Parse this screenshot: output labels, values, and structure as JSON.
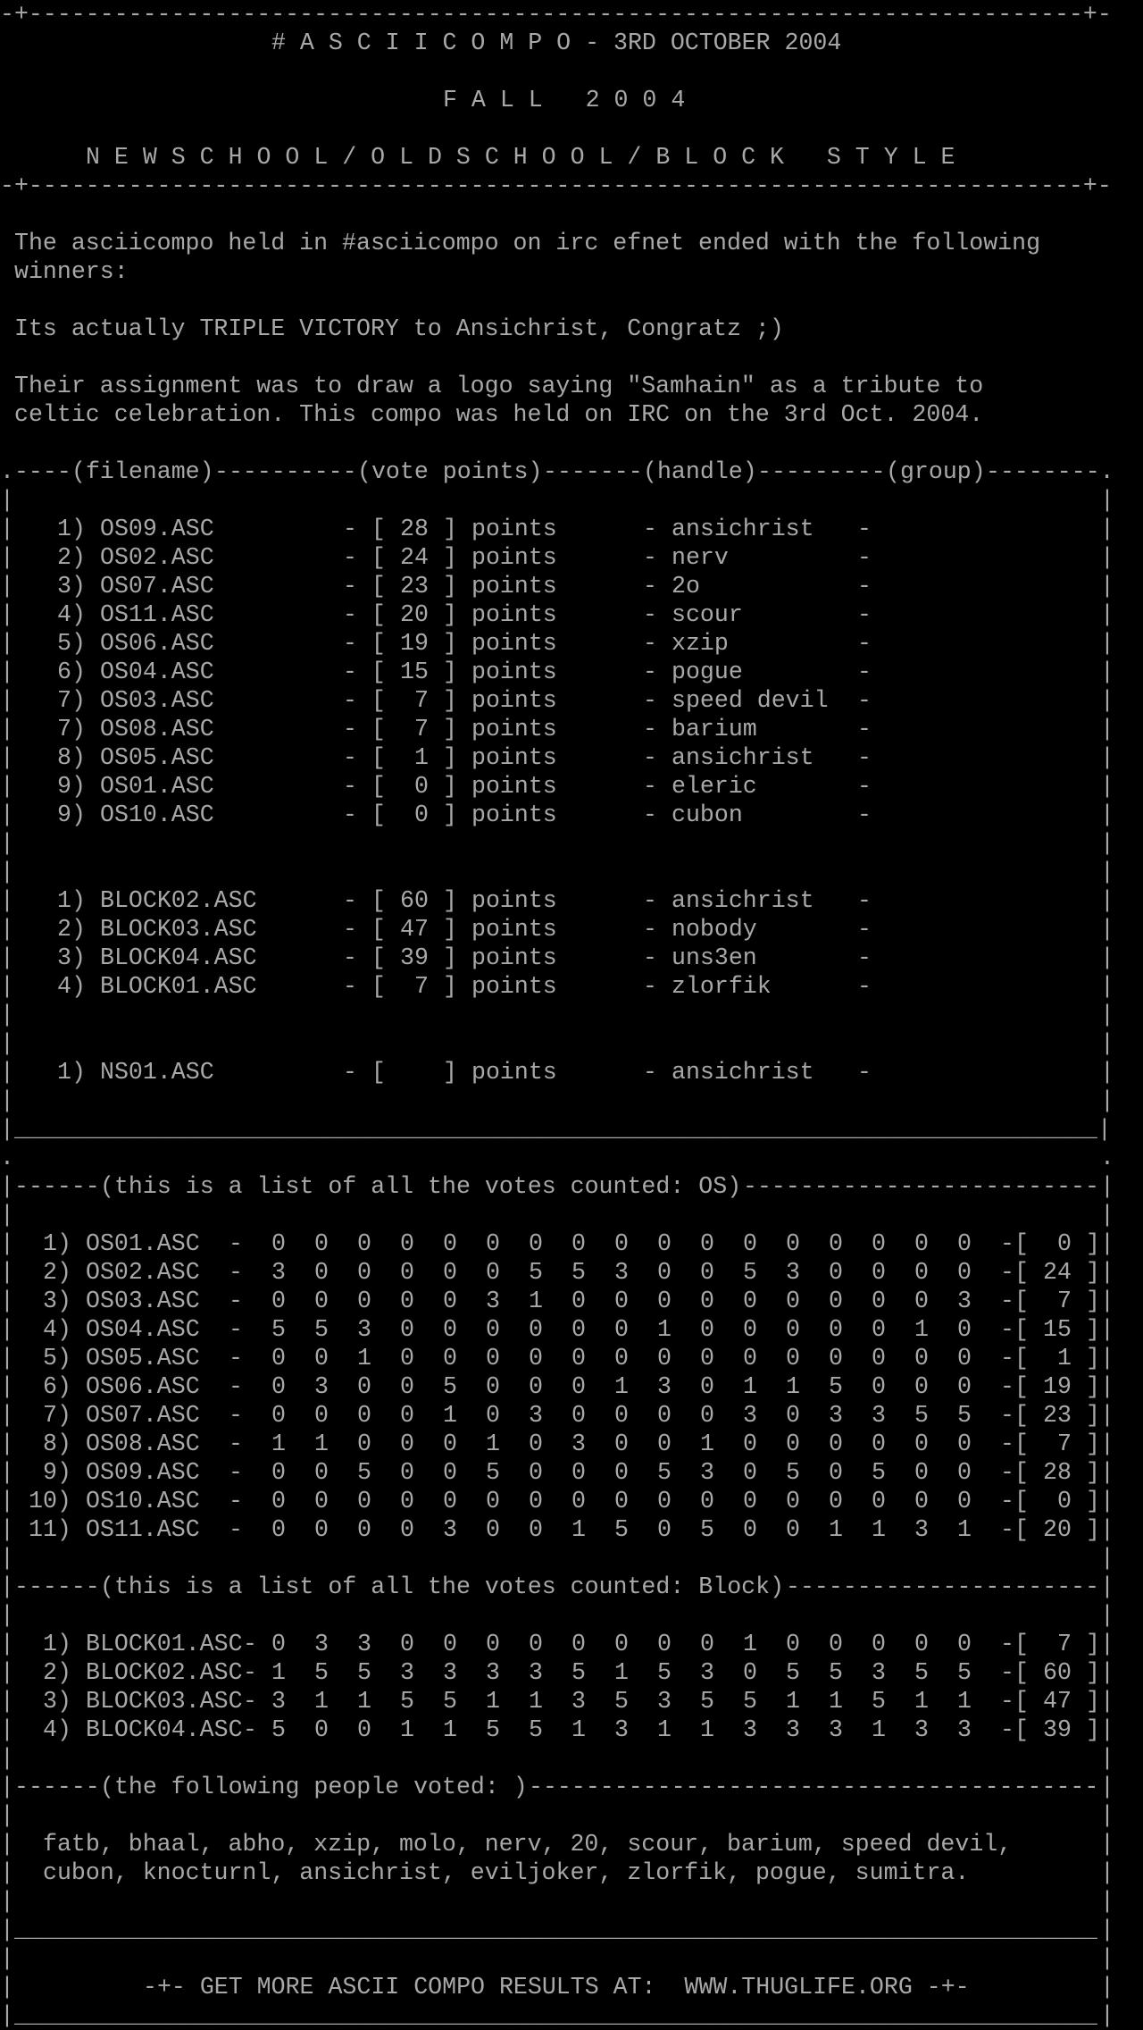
{
  "header": {
    "title": "# A S C I I C O M P O - 3RD OCTOBER 2004",
    "season": "F A L L   2 0 0 4",
    "categories": "N E W S C H O O L / O L D S C H O O L / B L O C K   S T Y L E"
  },
  "intro": {
    "p1_line1": "The asciicompo held in #asciicompo on irc efnet ended with the following",
    "p1_line2": "winners:",
    "p2": "Its actually TRIPLE VICTORY to Ansichrist, Congratz ;)",
    "p3_line1": "Their assignment was to draw a logo saying \"Samhain\" as a tribute to",
    "p3_line2": "celtic celebration. This compo was held on IRC on the 3rd Oct. 2004."
  },
  "results": {
    "columns": {
      "filename": "(filename)",
      "points": "(vote points)",
      "handle": "(handle)",
      "group": "(group)"
    },
    "points_label": "points",
    "oldschool": [
      {
        "rank": "1)",
        "file": "OS09.ASC",
        "points": "28",
        "handle": "ansichrist"
      },
      {
        "rank": "2)",
        "file": "OS02.ASC",
        "points": "24",
        "handle": "nerv"
      },
      {
        "rank": "3)",
        "file": "OS07.ASC",
        "points": "23",
        "handle": "2o"
      },
      {
        "rank": "4)",
        "file": "OS11.ASC",
        "points": "20",
        "handle": "scour"
      },
      {
        "rank": "5)",
        "file": "OS06.ASC",
        "points": "19",
        "handle": "xzip"
      },
      {
        "rank": "6)",
        "file": "OS04.ASC",
        "points": "15",
        "handle": "pogue"
      },
      {
        "rank": "7)",
        "file": "OS03.ASC",
        "points": "7",
        "handle": "speed devil"
      },
      {
        "rank": "7)",
        "file": "OS08.ASC",
        "points": "7",
        "handle": "barium"
      },
      {
        "rank": "8)",
        "file": "OS05.ASC",
        "points": "1",
        "handle": "ansichrist"
      },
      {
        "rank": "9)",
        "file": "OS01.ASC",
        "points": "0",
        "handle": "eleric"
      },
      {
        "rank": "9)",
        "file": "OS10.ASC",
        "points": "0",
        "handle": "cubon"
      }
    ],
    "block": [
      {
        "rank": "1)",
        "file": "BLOCK02.ASC",
        "points": "60",
        "handle": "ansichrist"
      },
      {
        "rank": "2)",
        "file": "BLOCK03.ASC",
        "points": "47",
        "handle": "nobody"
      },
      {
        "rank": "3)",
        "file": "BLOCK04.ASC",
        "points": "39",
        "handle": "uns3en"
      },
      {
        "rank": "4)",
        "file": "BLOCK01.ASC",
        "points": "7",
        "handle": "zlorfik"
      }
    ],
    "newschool": [
      {
        "rank": "1)",
        "file": "NS01.ASC",
        "points": "",
        "handle": "ansichrist"
      }
    ]
  },
  "votes_os": {
    "heading": "(this is a list of all the votes counted: OS)",
    "rows": [
      {
        "rank": "1)",
        "file": "OS01.ASC",
        "votes": [
          0,
          0,
          0,
          0,
          0,
          0,
          0,
          0,
          0,
          0,
          0,
          0,
          0,
          0,
          0,
          0,
          0
        ],
        "total": "0"
      },
      {
        "rank": "2)",
        "file": "OS02.ASC",
        "votes": [
          3,
          0,
          0,
          0,
          0,
          0,
          5,
          5,
          3,
          0,
          0,
          5,
          3,
          0,
          0,
          0,
          0
        ],
        "total": "24"
      },
      {
        "rank": "3)",
        "file": "OS03.ASC",
        "votes": [
          0,
          0,
          0,
          0,
          0,
          3,
          1,
          0,
          0,
          0,
          0,
          0,
          0,
          0,
          0,
          0,
          3
        ],
        "total": "7"
      },
      {
        "rank": "4)",
        "file": "OS04.ASC",
        "votes": [
          5,
          5,
          3,
          0,
          0,
          0,
          0,
          0,
          0,
          1,
          0,
          0,
          0,
          0,
          0,
          1,
          0
        ],
        "total": "15"
      },
      {
        "rank": "5)",
        "file": "OS05.ASC",
        "votes": [
          0,
          0,
          1,
          0,
          0,
          0,
          0,
          0,
          0,
          0,
          0,
          0,
          0,
          0,
          0,
          0,
          0
        ],
        "total": "1"
      },
      {
        "rank": "6)",
        "file": "OS06.ASC",
        "votes": [
          0,
          3,
          0,
          0,
          5,
          0,
          0,
          0,
          1,
          3,
          0,
          1,
          1,
          5,
          0,
          0,
          0
        ],
        "total": "19"
      },
      {
        "rank": "7)",
        "file": "OS07.ASC",
        "votes": [
          0,
          0,
          0,
          0,
          1,
          0,
          3,
          0,
          0,
          0,
          0,
          3,
          0,
          3,
          3,
          5,
          5
        ],
        "total": "23"
      },
      {
        "rank": "8)",
        "file": "OS08.ASC",
        "votes": [
          1,
          1,
          0,
          0,
          0,
          1,
          0,
          3,
          0,
          0,
          1,
          0,
          0,
          0,
          0,
          0,
          0
        ],
        "total": "7"
      },
      {
        "rank": "9)",
        "file": "OS09.ASC",
        "votes": [
          0,
          0,
          5,
          0,
          0,
          5,
          0,
          0,
          0,
          5,
          3,
          0,
          5,
          0,
          5,
          0,
          0
        ],
        "total": "28"
      },
      {
        "rank": "10)",
        "file": "OS10.ASC",
        "votes": [
          0,
          0,
          0,
          0,
          0,
          0,
          0,
          0,
          0,
          0,
          0,
          0,
          0,
          0,
          0,
          0,
          0
        ],
        "total": "0"
      },
      {
        "rank": "11)",
        "file": "OS11.ASC",
        "votes": [
          0,
          0,
          0,
          0,
          3,
          0,
          0,
          1,
          5,
          0,
          5,
          0,
          0,
          1,
          1,
          3,
          1
        ],
        "total": "20"
      }
    ]
  },
  "votes_block": {
    "heading": "(this is a list of all the votes counted: Block)",
    "rows": [
      {
        "rank": "1)",
        "file": "BLOCK01.ASC",
        "votes": [
          0,
          3,
          3,
          0,
          0,
          0,
          0,
          0,
          0,
          0,
          0,
          1,
          0,
          0,
          0,
          0,
          0
        ],
        "total": "7"
      },
      {
        "rank": "2)",
        "file": "BLOCK02.ASC",
        "votes": [
          1,
          5,
          5,
          3,
          3,
          3,
          3,
          5,
          1,
          5,
          3,
          0,
          5,
          5,
          3,
          5,
          5
        ],
        "total": "60"
      },
      {
        "rank": "3)",
        "file": "BLOCK03.ASC",
        "votes": [
          3,
          1,
          1,
          5,
          5,
          1,
          1,
          3,
          5,
          3,
          5,
          5,
          1,
          1,
          5,
          1,
          1
        ],
        "total": "47"
      },
      {
        "rank": "4)",
        "file": "BLOCK04.ASC",
        "votes": [
          5,
          0,
          0,
          1,
          1,
          5,
          5,
          1,
          3,
          1,
          1,
          3,
          3,
          3,
          1,
          3,
          3
        ],
        "total": "39"
      }
    ]
  },
  "voters": {
    "heading": "(the following people voted: )",
    "line1": "fatb, bhaal, abho, xzip, molo, nerv, 20, scour, barium, speed devil,",
    "line2": "cubon, knocturnl, ansichrist, eviljoker, zlorfik, pogue, sumitra."
  },
  "footer": {
    "text": "-+- GET MORE ASCII COMPO RESULTS AT:  WWW.THUGLIFE.ORG -+-"
  },
  "colors": {
    "text": "#a8a8a8",
    "background": "#000000"
  }
}
